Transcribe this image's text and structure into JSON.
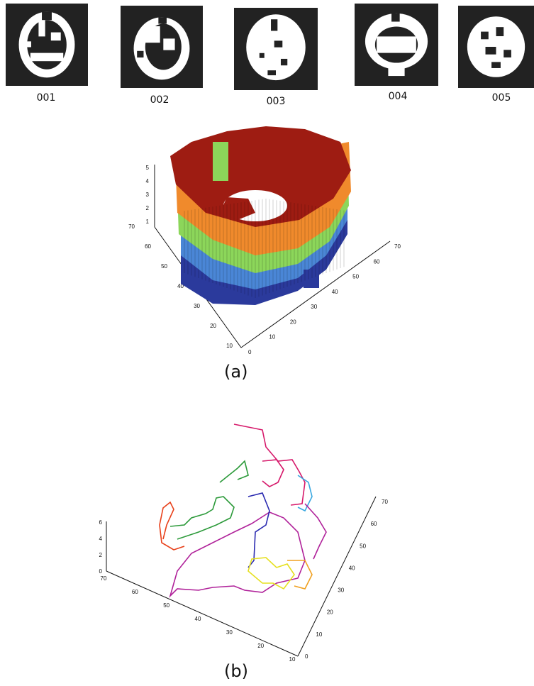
{
  "thumbnails": [
    {
      "label": "001"
    },
    {
      "label": "002"
    },
    {
      "label": "003"
    },
    {
      "label": "004"
    },
    {
      "label": "005"
    }
  ],
  "figure_a": {
    "caption": "(a)",
    "z_ticks": [
      "1",
      "2",
      "3",
      "4",
      "5"
    ],
    "y_ticks": [
      "10",
      "20",
      "30",
      "40",
      "50",
      "60",
      "70"
    ],
    "x_ticks": [
      "0",
      "10",
      "20",
      "30",
      "40",
      "50",
      "60",
      "70"
    ],
    "layer_colors": [
      "#2b3a9c",
      "#4a86d6",
      "#8cd65a",
      "#f08a2c",
      "#9e1c12"
    ]
  },
  "figure_b": {
    "caption": "(b)",
    "z_ticks": [
      "0",
      "2",
      "4",
      "6"
    ],
    "y_ticks": [
      "10",
      "20",
      "30",
      "40",
      "50",
      "60",
      "70"
    ],
    "x_ticks": [
      "0",
      "10",
      "20",
      "30",
      "40",
      "50",
      "60",
      "70"
    ],
    "contour_colors": [
      "#d6186a",
      "#b0229a",
      "#2c9a3a",
      "#e8401a",
      "#2a2ab0",
      "#3aa8e0",
      "#e6e020",
      "#f0a020"
    ]
  }
}
